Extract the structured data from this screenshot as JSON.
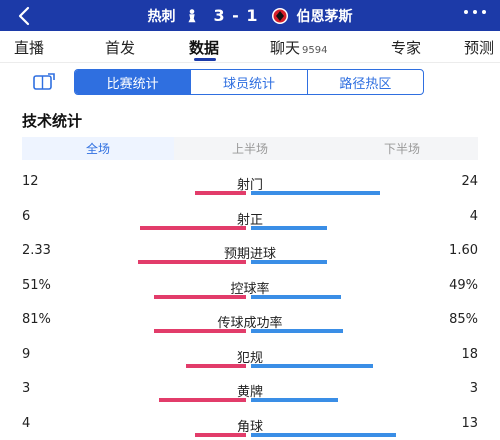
{
  "header": {
    "home_team": "热刺",
    "away_team": "伯恩茅斯",
    "score": "3 - 1",
    "colors": {
      "bg": "#1c3aa8"
    }
  },
  "tabs": [
    {
      "label": "直播"
    },
    {
      "label": "首发"
    },
    {
      "label": "数据"
    },
    {
      "label": "聊天",
      "sub": "9594"
    },
    {
      "label": "专家"
    },
    {
      "label": "预测"
    }
  ],
  "segments": [
    "比赛统计",
    "球员统计",
    "路径热区"
  ],
  "section_title": "技术统计",
  "periods": [
    "全场",
    "上半场",
    "下半场"
  ],
  "stats": [
    {
      "name": "射门",
      "left": "12",
      "right": "24",
      "lf": 0.22,
      "rf": 0.56
    },
    {
      "name": "射正",
      "left": "6",
      "right": "4",
      "lf": 0.46,
      "rf": 0.33
    },
    {
      "name": "预期进球",
      "left": "2.33",
      "right": "1.60",
      "lf": 0.47,
      "rf": 0.33
    },
    {
      "name": "控球率",
      "left": "51%",
      "right": "49%",
      "lf": 0.4,
      "rf": 0.39
    },
    {
      "name": "传球成功率",
      "left": "81%",
      "right": "85%",
      "lf": 0.4,
      "rf": 0.4
    },
    {
      "name": "犯规",
      "left": "9",
      "right": "18",
      "lf": 0.26,
      "rf": 0.53
    },
    {
      "name": "黄牌",
      "left": "3",
      "right": "3",
      "lf": 0.38,
      "rf": 0.38
    },
    {
      "name": "角球",
      "left": "4",
      "right": "13",
      "lf": 0.22,
      "rf": 0.63
    }
  ]
}
